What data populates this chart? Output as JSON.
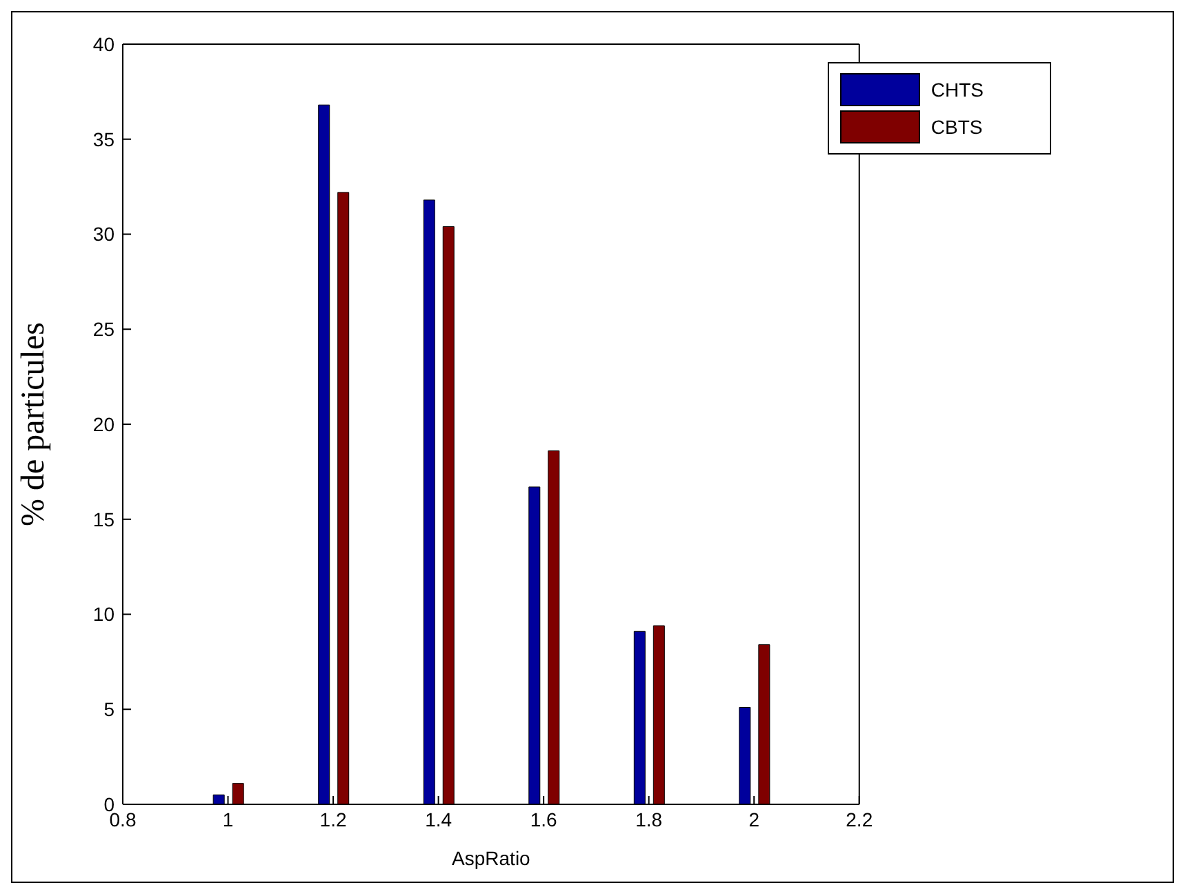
{
  "chart_data": {
    "type": "bar",
    "xlabel": "AspRatio",
    "ylabel": "% de particules",
    "x": [
      1,
      1.2,
      1.4,
      1.6,
      1.8,
      2
    ],
    "series": [
      {
        "name": "CHTS",
        "color": "#00009c",
        "values": [
          0.5,
          36.8,
          31.8,
          16.7,
          9.1,
          5.1
        ]
      },
      {
        "name": "CBTS",
        "color": "#7f0000",
        "values": [
          1.1,
          32.2,
          30.4,
          18.6,
          9.4,
          8.4
        ]
      }
    ],
    "xlim": [
      0.8,
      2.2
    ],
    "xticks": [
      0.8,
      1,
      1.2,
      1.4,
      1.6,
      1.8,
      2,
      2.2
    ],
    "ylim": [
      0,
      40
    ],
    "yticks": [
      0,
      5,
      10,
      15,
      20,
      25,
      30,
      35,
      40
    ],
    "grid": false,
    "legend": "top right"
  }
}
